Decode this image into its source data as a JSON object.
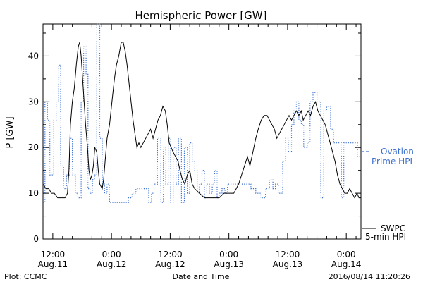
{
  "chart_data": {
    "type": "line",
    "title": "Hemispheric Power [GW]",
    "ylabel": "P [GW]",
    "xlabel": "Date and Time",
    "ylim": [
      0,
      47
    ],
    "yticks": [
      0,
      10,
      20,
      30,
      40
    ],
    "x_range_hours": [
      -2,
      63
    ],
    "xticks": [
      {
        "hour": 0,
        "time": "12:00",
        "date": "Aug.11"
      },
      {
        "hour": 12,
        "time": "0:00",
        "date": "Aug.12"
      },
      {
        "hour": 24,
        "time": "12:00",
        "date": "Aug.12"
      },
      {
        "hour": 36,
        "time": "0:00",
        "date": "Aug.13"
      },
      {
        "hour": 48,
        "time": "12:00",
        "date": "Aug.13"
      },
      {
        "hour": 60,
        "time": "0:00",
        "date": "Aug.14"
      }
    ],
    "grid": false,
    "series": [
      {
        "name": "Ovation Prime HPI",
        "color": "#3a6fd0",
        "style": "dotted",
        "step": true,
        "points": [
          [
            -2,
            8
          ],
          [
            -1.6,
            8
          ],
          [
            -1.6,
            30
          ],
          [
            -1.1,
            30
          ],
          [
            -1.1,
            26
          ],
          [
            -0.6,
            26
          ],
          [
            -0.6,
            14
          ],
          [
            0.2,
            14
          ],
          [
            0.2,
            26
          ],
          [
            0.7,
            26
          ],
          [
            0.7,
            30
          ],
          [
            1.2,
            30
          ],
          [
            1.2,
            38
          ],
          [
            1.6,
            38
          ],
          [
            1.6,
            16
          ],
          [
            2.2,
            16
          ],
          [
            2.2,
            11
          ],
          [
            2.8,
            11
          ],
          [
            2.8,
            14
          ],
          [
            3.5,
            14
          ],
          [
            3.5,
            22
          ],
          [
            4,
            22
          ],
          [
            4,
            14
          ],
          [
            4.6,
            14
          ],
          [
            4.6,
            10
          ],
          [
            5.1,
            10
          ],
          [
            5.1,
            9
          ],
          [
            5.8,
            9
          ],
          [
            5.8,
            30
          ],
          [
            6.3,
            30
          ],
          [
            6.3,
            42
          ],
          [
            6.8,
            42
          ],
          [
            6.8,
            36
          ],
          [
            7.2,
            36
          ],
          [
            7.2,
            11
          ],
          [
            7.6,
            11
          ],
          [
            7.6,
            10
          ],
          [
            8.1,
            10
          ],
          [
            8.1,
            13
          ],
          [
            8.5,
            13
          ],
          [
            8.5,
            14
          ],
          [
            9,
            14
          ],
          [
            9,
            47
          ],
          [
            9.6,
            47
          ],
          [
            9.6,
            22
          ],
          [
            10.1,
            22
          ],
          [
            10.1,
            12
          ],
          [
            10.6,
            12
          ],
          [
            10.6,
            10
          ],
          [
            11.1,
            10
          ],
          [
            11.1,
            12
          ],
          [
            11.6,
            12
          ],
          [
            11.6,
            8
          ],
          [
            15.5,
            8
          ],
          [
            15.5,
            9
          ],
          [
            16.2,
            9
          ],
          [
            16.2,
            10
          ],
          [
            17,
            10
          ],
          [
            17,
            11
          ],
          [
            19.6,
            11
          ],
          [
            19.6,
            8
          ],
          [
            20.2,
            8
          ],
          [
            20.2,
            10
          ],
          [
            20.7,
            10
          ],
          [
            20.7,
            12
          ],
          [
            21.4,
            12
          ],
          [
            21.4,
            22
          ],
          [
            22.1,
            22
          ],
          [
            22.1,
            8
          ],
          [
            22.6,
            8
          ],
          [
            22.6,
            20
          ],
          [
            23.1,
            20
          ],
          [
            23.1,
            12
          ],
          [
            23.6,
            12
          ],
          [
            23.6,
            22
          ],
          [
            24.1,
            22
          ],
          [
            24.1,
            8
          ],
          [
            24.6,
            8
          ],
          [
            24.6,
            20
          ],
          [
            25.2,
            20
          ],
          [
            25.2,
            12
          ],
          [
            25.7,
            12
          ],
          [
            25.7,
            22
          ],
          [
            26.3,
            22
          ],
          [
            26.3,
            8
          ],
          [
            26.9,
            8
          ],
          [
            26.9,
            20
          ],
          [
            27.5,
            20
          ],
          [
            27.5,
            10
          ],
          [
            28,
            10
          ],
          [
            28,
            21
          ],
          [
            28.5,
            21
          ],
          [
            28.5,
            17
          ],
          [
            29,
            17
          ],
          [
            29,
            15
          ],
          [
            29.5,
            15
          ],
          [
            29.5,
            10
          ],
          [
            30,
            10
          ],
          [
            30,
            12
          ],
          [
            30.5,
            12
          ],
          [
            30.5,
            15
          ],
          [
            31,
            15
          ],
          [
            31,
            9
          ],
          [
            31.5,
            9
          ],
          [
            31.5,
            12
          ],
          [
            32,
            12
          ],
          [
            32,
            10
          ],
          [
            32.6,
            10
          ],
          [
            32.6,
            12
          ],
          [
            33.1,
            12
          ],
          [
            33.1,
            15
          ],
          [
            33.6,
            15
          ],
          [
            33.6,
            9
          ],
          [
            34.1,
            9
          ],
          [
            34.1,
            10
          ],
          [
            34.6,
            10
          ],
          [
            34.6,
            11
          ],
          [
            35.2,
            11
          ],
          [
            35.2,
            10
          ],
          [
            35.7,
            10
          ],
          [
            35.7,
            12
          ],
          [
            40.5,
            12
          ],
          [
            40.5,
            11
          ],
          [
            41.5,
            11
          ],
          [
            41.5,
            10
          ],
          [
            42.5,
            10
          ],
          [
            42.5,
            9
          ],
          [
            43.5,
            9
          ],
          [
            43.5,
            11
          ],
          [
            44.3,
            11
          ],
          [
            44.3,
            13
          ],
          [
            45,
            13
          ],
          [
            45,
            11
          ],
          [
            45.5,
            11
          ],
          [
            45.5,
            12
          ],
          [
            46.1,
            12
          ],
          [
            46.1,
            10
          ],
          [
            47,
            10
          ],
          [
            47,
            17
          ],
          [
            47.6,
            17
          ],
          [
            47.6,
            22
          ],
          [
            48.2,
            22
          ],
          [
            48.2,
            19
          ],
          [
            48.8,
            19
          ],
          [
            48.8,
            25
          ],
          [
            49.3,
            25
          ],
          [
            49.3,
            28
          ],
          [
            49.8,
            28
          ],
          [
            49.8,
            30
          ],
          [
            50.3,
            30
          ],
          [
            50.3,
            26
          ],
          [
            50.8,
            26
          ],
          [
            50.8,
            25
          ],
          [
            51.3,
            25
          ],
          [
            51.3,
            20
          ],
          [
            52,
            20
          ],
          [
            52,
            21
          ],
          [
            52.6,
            21
          ],
          [
            52.6,
            30
          ],
          [
            53.2,
            30
          ],
          [
            53.2,
            32
          ],
          [
            54,
            32
          ],
          [
            54,
            30
          ],
          [
            54.8,
            30
          ],
          [
            54.8,
            9
          ],
          [
            55.4,
            9
          ],
          [
            55.4,
            28
          ],
          [
            56,
            28
          ],
          [
            56,
            29
          ],
          [
            56.8,
            29
          ],
          [
            56.8,
            24
          ],
          [
            57.4,
            24
          ],
          [
            57.4,
            21
          ],
          [
            59,
            21
          ],
          [
            59,
            9
          ],
          [
            59.5,
            9
          ],
          [
            59.5,
            21
          ],
          [
            62.3,
            21
          ],
          [
            62.3,
            18
          ],
          [
            63,
            18
          ]
        ]
      },
      {
        "name": "SWPC 5-min HPI",
        "color": "#000000",
        "style": "solid",
        "step": false,
        "points": [
          [
            -2,
            12
          ],
          [
            -1.4,
            11
          ],
          [
            -0.8,
            11
          ],
          [
            -0.3,
            10
          ],
          [
            0.3,
            10
          ],
          [
            1,
            9
          ],
          [
            2,
            9
          ],
          [
            2.5,
            9
          ],
          [
            3,
            10
          ],
          [
            3.3,
            15
          ],
          [
            3.6,
            25
          ],
          [
            4,
            30
          ],
          [
            4.4,
            33
          ],
          [
            4.8,
            38
          ],
          [
            5.2,
            42
          ],
          [
            5.5,
            43
          ],
          [
            5.8,
            40
          ],
          [
            6.1,
            35
          ],
          [
            6.4,
            30
          ],
          [
            6.7,
            25
          ],
          [
            7.1,
            20
          ],
          [
            7.4,
            15
          ],
          [
            7.7,
            13
          ],
          [
            8,
            14
          ],
          [
            8.3,
            16
          ],
          [
            8.6,
            20
          ],
          [
            9,
            19
          ],
          [
            9.3,
            15
          ],
          [
            9.6,
            12
          ],
          [
            10.1,
            11
          ],
          [
            10.4,
            13
          ],
          [
            10.7,
            17
          ],
          [
            11.1,
            22
          ],
          [
            11.6,
            25
          ],
          [
            12.1,
            30
          ],
          [
            12.6,
            35
          ],
          [
            13,
            38
          ],
          [
            13.5,
            40
          ],
          [
            14,
            43
          ],
          [
            14.4,
            43
          ],
          [
            14.8,
            41
          ],
          [
            15.2,
            38
          ],
          [
            15.6,
            34
          ],
          [
            16,
            30
          ],
          [
            16.4,
            26
          ],
          [
            16.8,
            23
          ],
          [
            17.2,
            20
          ],
          [
            17.6,
            21
          ],
          [
            18,
            20
          ],
          [
            18.5,
            21
          ],
          [
            19,
            22
          ],
          [
            19.5,
            23
          ],
          [
            20,
            24
          ],
          [
            20.5,
            22
          ],
          [
            21,
            24
          ],
          [
            21.5,
            26
          ],
          [
            22,
            27
          ],
          [
            22.5,
            29
          ],
          [
            23,
            28
          ],
          [
            23.4,
            25
          ],
          [
            23.8,
            21
          ],
          [
            24.2,
            20
          ],
          [
            24.6,
            19
          ],
          [
            25.1,
            18
          ],
          [
            25.6,
            17
          ],
          [
            26,
            15
          ],
          [
            26.5,
            13
          ],
          [
            27,
            12
          ],
          [
            27.5,
            14
          ],
          [
            28,
            15
          ],
          [
            28.5,
            12
          ],
          [
            29,
            11
          ],
          [
            30,
            10
          ],
          [
            31,
            9
          ],
          [
            32,
            9
          ],
          [
            33,
            9
          ],
          [
            34,
            9
          ],
          [
            35,
            10
          ],
          [
            36,
            10
          ],
          [
            37,
            10
          ],
          [
            37.5,
            11
          ],
          [
            38,
            12
          ],
          [
            38.6,
            14
          ],
          [
            39.2,
            16
          ],
          [
            39.8,
            18
          ],
          [
            40.3,
            16
          ],
          [
            40.9,
            19
          ],
          [
            41.5,
            22
          ],
          [
            42,
            24
          ],
          [
            42.6,
            26
          ],
          [
            43.2,
            27
          ],
          [
            43.8,
            27
          ],
          [
            44.3,
            26
          ],
          [
            44.8,
            25
          ],
          [
            45.3,
            24
          ],
          [
            45.8,
            22
          ],
          [
            46.3,
            23
          ],
          [
            46.8,
            24
          ],
          [
            47.3,
            25
          ],
          [
            47.8,
            26
          ],
          [
            48.3,
            27
          ],
          [
            48.8,
            26
          ],
          [
            49.3,
            27
          ],
          [
            49.8,
            28
          ],
          [
            50.3,
            27
          ],
          [
            50.8,
            28
          ],
          [
            51.2,
            26
          ],
          [
            51.7,
            27
          ],
          [
            52.2,
            28
          ],
          [
            52.7,
            27
          ],
          [
            53.2,
            29
          ],
          [
            53.7,
            30
          ],
          [
            54.2,
            28
          ],
          [
            54.7,
            27
          ],
          [
            55.2,
            26
          ],
          [
            55.7,
            25
          ],
          [
            56.2,
            23
          ],
          [
            56.7,
            21
          ],
          [
            57.2,
            19
          ],
          [
            57.7,
            17
          ],
          [
            58.2,
            14
          ],
          [
            58.7,
            12
          ],
          [
            59.2,
            11
          ],
          [
            59.7,
            10
          ],
          [
            60.2,
            10
          ],
          [
            60.7,
            11
          ],
          [
            61.2,
            10
          ],
          [
            61.7,
            9
          ],
          [
            62.2,
            10
          ],
          [
            62.6,
            9
          ],
          [
            63,
            9
          ]
        ]
      }
    ],
    "legend": [
      {
        "line1": "Ovation",
        "line2": "Prime HPI",
        "color": "#3a6fd0",
        "style": "dashed"
      },
      {
        "line1": "SWPC",
        "line2": "5-min HPI",
        "color": "#000000",
        "style": "solid"
      }
    ]
  },
  "footer": {
    "left": "Plot: CCMC",
    "timestamp": "2016/08/14 11:20:26"
  }
}
